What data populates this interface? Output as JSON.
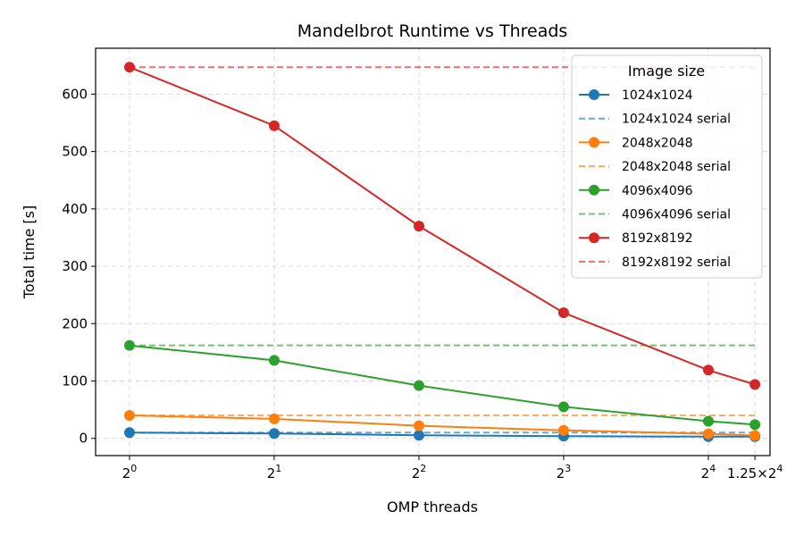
{
  "chart_data": {
    "type": "line",
    "title": "Mandelbrot Runtime vs Threads",
    "xlabel": "OMP threads",
    "ylabel": "Total time [s]",
    "x_scale": "log2",
    "xlim": [
      0.85,
      21.5
    ],
    "ylim": [
      -30,
      680
    ],
    "grid": true,
    "legend_placement": "top-right",
    "legend_title": "Image size",
    "x_ticks": [
      {
        "value": 1,
        "base": "2",
        "exp": "0"
      },
      {
        "value": 2,
        "base": "2",
        "exp": "1"
      },
      {
        "value": 4,
        "base": "2",
        "exp": "2"
      },
      {
        "value": 8,
        "base": "2",
        "exp": "3"
      },
      {
        "value": 16,
        "base": "2",
        "exp": "4"
      },
      {
        "value": 20,
        "base": "1.25×2",
        "exp": "4"
      }
    ],
    "y_ticks": [
      0,
      100,
      200,
      300,
      400,
      500,
      600
    ],
    "x": [
      1,
      2,
      4,
      8,
      16,
      20
    ],
    "series": [
      {
        "name": "1024x1024",
        "color": "#1f77b4",
        "values": [
          10,
          8.5,
          5.5,
          4,
          3,
          3
        ]
      },
      {
        "name": "1024x1024 serial",
        "color": "#1f77b4",
        "style": "dashed",
        "constant": 10
      },
      {
        "name": "2048x2048",
        "color": "#ff7f0e",
        "values": [
          40,
          34,
          22,
          14,
          8,
          5
        ]
      },
      {
        "name": "2048x2048 serial",
        "color": "#ff7f0e",
        "style": "dashed",
        "constant": 40
      },
      {
        "name": "4096x4096",
        "color": "#2ca02c",
        "values": [
          162,
          136,
          92,
          55,
          30,
          24
        ]
      },
      {
        "name": "4096x4096 serial",
        "color": "#2ca02c",
        "style": "dashed",
        "constant": 162
      },
      {
        "name": "8192x8192",
        "color": "#d62728",
        "values": [
          647,
          545,
          370,
          219,
          119,
          94
        ]
      },
      {
        "name": "8192x8192 serial",
        "color": "#d62728",
        "style": "dashed",
        "constant": 647
      }
    ]
  }
}
